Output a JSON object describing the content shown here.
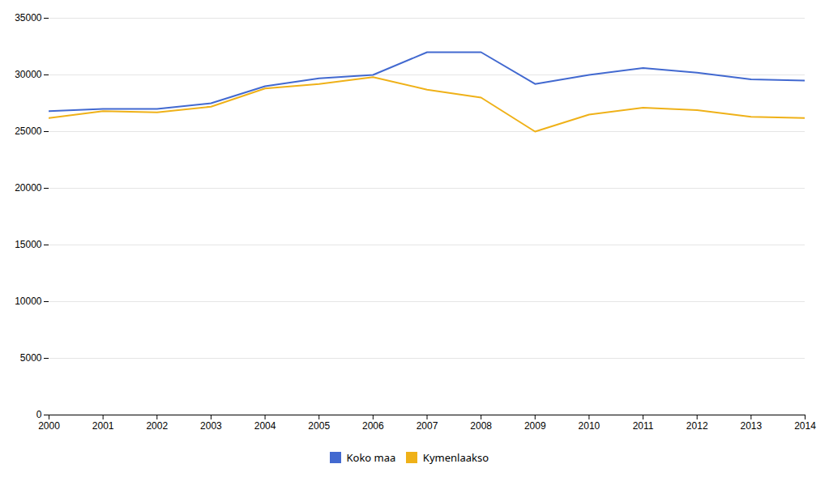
{
  "chart_data": {
    "type": "line",
    "x": [
      2000,
      2001,
      2002,
      2003,
      2004,
      2005,
      2006,
      2007,
      2008,
      2009,
      2010,
      2011,
      2012,
      2013,
      2014
    ],
    "series": [
      {
        "name": "Koko maa",
        "values": [
          26800,
          27000,
          27000,
          27500,
          29000,
          29700,
          30000,
          32000,
          32000,
          29200,
          30000,
          30600,
          30200,
          29600,
          29500
        ]
      },
      {
        "name": "Kymenlaakso",
        "values": [
          26200,
          26800,
          26700,
          27200,
          28800,
          29200,
          29800,
          28700,
          28000,
          25000,
          26500,
          27100,
          26900,
          26300,
          26200
        ]
      }
    ],
    "xlim": [
      2000,
      2014
    ],
    "xticks": [
      2000,
      2001,
      2002,
      2003,
      2004,
      2005,
      2006,
      2007,
      2008,
      2009,
      2010,
      2011,
      2012,
      2013,
      2014
    ],
    "ylim": [
      0,
      35000
    ],
    "yticks": [
      0,
      5000,
      10000,
      15000,
      20000,
      25000,
      30000,
      35000
    ],
    "grid": "y",
    "legend": "bottom"
  }
}
